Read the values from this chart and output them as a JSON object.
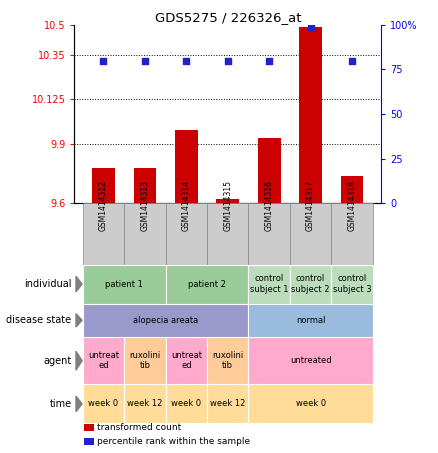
{
  "title": "GDS5275 / 226326_at",
  "samples": [
    "GSM1414312",
    "GSM1414313",
    "GSM1414314",
    "GSM1414315",
    "GSM1414316",
    "GSM1414317",
    "GSM1414318"
  ],
  "bar_values": [
    9.78,
    9.78,
    9.97,
    9.62,
    9.93,
    10.49,
    9.74
  ],
  "dot_values": [
    80,
    80,
    80,
    80,
    80,
    99,
    80
  ],
  "ylim_left": [
    9.6,
    10.5
  ],
  "ylim_right": [
    0,
    100
  ],
  "yticks_left": [
    9.6,
    9.9,
    10.125,
    10.35,
    10.5
  ],
  "ytick_labels_left": [
    "9.6",
    "9.9",
    "10.125",
    "10.35",
    "10.5"
  ],
  "yticks_right": [
    0,
    25,
    50,
    75,
    100
  ],
  "ytick_labels_right": [
    "0",
    "25",
    "50",
    "75",
    "100%"
  ],
  "hlines": [
    9.9,
    10.125,
    10.35
  ],
  "bar_color": "#cc0000",
  "dot_color": "#2222cc",
  "bar_width": 0.55,
  "rows": {
    "individual": {
      "label": "individual",
      "entries": [
        {
          "cols": [
            0,
            1
          ],
          "text": "patient 1",
          "color": "#99cc99"
        },
        {
          "cols": [
            2,
            3
          ],
          "text": "patient 2",
          "color": "#99cc99"
        },
        {
          "cols": [
            4
          ],
          "text": "control\nsubject 1",
          "color": "#bbddbb"
        },
        {
          "cols": [
            5
          ],
          "text": "control\nsubject 2",
          "color": "#bbddbb"
        },
        {
          "cols": [
            6
          ],
          "text": "control\nsubject 3",
          "color": "#bbddbb"
        }
      ]
    },
    "disease_state": {
      "label": "disease state",
      "entries": [
        {
          "cols": [
            0,
            1,
            2,
            3
          ],
          "text": "alopecia areata",
          "color": "#9999cc"
        },
        {
          "cols": [
            4,
            5,
            6
          ],
          "text": "normal",
          "color": "#99bbdd"
        }
      ]
    },
    "agent": {
      "label": "agent",
      "entries": [
        {
          "cols": [
            0
          ],
          "text": "untreat\ned",
          "color": "#ffaacc"
        },
        {
          "cols": [
            1
          ],
          "text": "ruxolini\ntib",
          "color": "#ffcc99"
        },
        {
          "cols": [
            2
          ],
          "text": "untreat\ned",
          "color": "#ffaacc"
        },
        {
          "cols": [
            3
          ],
          "text": "ruxolini\ntib",
          "color": "#ffcc99"
        },
        {
          "cols": [
            4,
            5,
            6
          ],
          "text": "untreated",
          "color": "#ffaacc"
        }
      ]
    },
    "time": {
      "label": "time",
      "entries": [
        {
          "cols": [
            0
          ],
          "text": "week 0",
          "color": "#ffdd99"
        },
        {
          "cols": [
            1
          ],
          "text": "week 12",
          "color": "#ffdd99"
        },
        {
          "cols": [
            2
          ],
          "text": "week 0",
          "color": "#ffdd99"
        },
        {
          "cols": [
            3
          ],
          "text": "week 12",
          "color": "#ffdd99"
        },
        {
          "cols": [
            4,
            5,
            6
          ],
          "text": "week 0",
          "color": "#ffdd99"
        }
      ]
    }
  },
  "row_order": [
    "individual",
    "disease_state",
    "agent",
    "time"
  ],
  "row_display_labels": [
    "individual",
    "disease state",
    "agent",
    "time"
  ],
  "legend": [
    {
      "color": "#cc0000",
      "label": "transformed count"
    },
    {
      "color": "#2222cc",
      "label": "percentile rank within the sample"
    }
  ],
  "sample_box_color": "#cccccc",
  "sample_box_edge": "#888888"
}
